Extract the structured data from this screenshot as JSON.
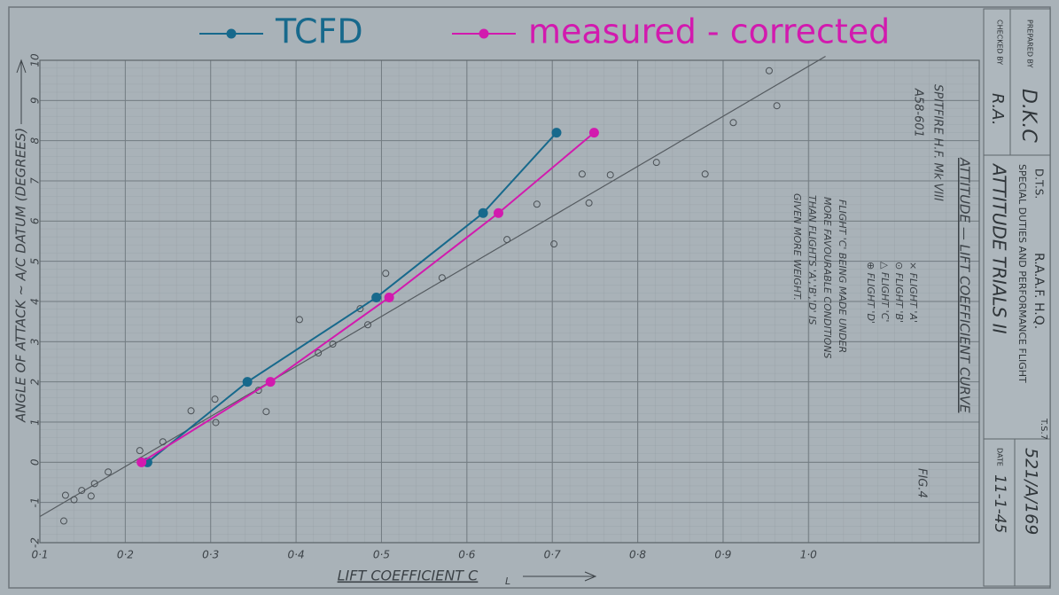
{
  "chart_data": {
    "type": "line",
    "x_label": "LIFT COEFFICIENT  C",
    "x_label_sub": "L",
    "y_label": "ANGLE OF ATTACK ~ A/C DATUM (DEGREES)",
    "xlim": [
      0.1,
      1.2
    ],
    "ylim": [
      -2,
      10
    ],
    "xticks": [
      {
        "value": 0.1,
        "label": "0·1"
      },
      {
        "value": 0.2,
        "label": "0·2"
      },
      {
        "value": 0.3,
        "label": "0·3"
      },
      {
        "value": 0.4,
        "label": "0·4"
      },
      {
        "value": 0.5,
        "label": "0·5"
      },
      {
        "value": 0.6,
        "label": "0·6"
      },
      {
        "value": 0.7,
        "label": "0·7"
      },
      {
        "value": 0.8,
        "label": "0·8"
      },
      {
        "value": 0.9,
        "label": "0·9"
      },
      {
        "value": 1.0,
        "label": "1·0"
      }
    ],
    "yticks": [
      -2,
      -1,
      0,
      1,
      2,
      3,
      4,
      5,
      6,
      7,
      8,
      9,
      10
    ],
    "grid": true,
    "legend": "top",
    "series": [
      {
        "name": "TCFD",
        "color": "#17698c",
        "x": [
          0.226,
          0.343,
          0.494,
          0.619,
          0.705
        ],
        "values": [
          0,
          2.0,
          4.1,
          6.2,
          8.2
        ]
      },
      {
        "name": "measured - corrected",
        "color": "#d21aae",
        "x": [
          0.219,
          0.37,
          0.509,
          0.637,
          0.749
        ],
        "values": [
          0,
          2.0,
          4.1,
          6.2,
          8.2
        ]
      }
    ],
    "reference_line": {
      "color": "#555b60",
      "x": [
        0.1,
        1.02
      ],
      "values": [
        -1.35,
        10.1
      ]
    },
    "points": {
      "color": "#4a5055",
      "x": [
        0.128,
        0.13,
        0.14,
        0.149,
        0.16,
        0.164,
        0.18,
        0.217,
        0.244,
        0.277,
        0.305,
        0.306,
        0.356,
        0.365,
        0.404,
        0.426,
        0.443,
        0.475,
        0.484,
        0.505,
        0.571,
        0.647,
        0.682,
        0.702,
        0.735,
        0.743,
        0.768,
        0.822,
        0.879,
        0.912,
        0.963,
        0.954
      ],
      "values": [
        -1.46,
        -0.82,
        -0.93,
        -0.7,
        -0.84,
        -0.53,
        -0.24,
        0.29,
        0.51,
        1.28,
        1.57,
        0.99,
        1.79,
        1.26,
        3.55,
        2.72,
        2.94,
        3.82,
        3.42,
        4.7,
        4.59,
        5.54,
        6.42,
        5.43,
        7.17,
        6.45,
        7.15,
        7.46,
        7.17,
        8.45,
        8.87,
        9.74
      ]
    }
  },
  "notes": {
    "title": "ATTITUDE — LIFT COEFFICIENT CURVE",
    "aircraft": "SPITFIRE H.F. Mk VIII",
    "serial": "A58-601",
    "key": [
      "× FLIGHT 'A'",
      "⊙ FLIGHT 'B'",
      "△ FLIGHT 'C'",
      "⊕ FLIGHT 'D'"
    ],
    "remark": [
      "FLIGHT 'C' BEING MADE UNDER",
      "MORE FAVOURABLE CONDITIONS",
      "THAN FLIGHTS 'A','B','D' IS",
      "GIVEN MORE WEIGHT."
    ],
    "figure": "FIG.4"
  },
  "title_block": {
    "prepared_label": "PREPARED BY",
    "prepared": "D.K.C",
    "checked_label": "CHECKED BY",
    "checked": "R.A.",
    "org": "R.A.A.F. H.Q.",
    "dept": "D.T.S.",
    "unit": "SPECIAL DUTIES AND PERFORMANCE FLIGHT",
    "trials": "ATTITUDE TRIALS II",
    "ts": "T.S.7",
    "ref": "521/A/169",
    "date_label": "DATE",
    "date": "11-1-45"
  }
}
